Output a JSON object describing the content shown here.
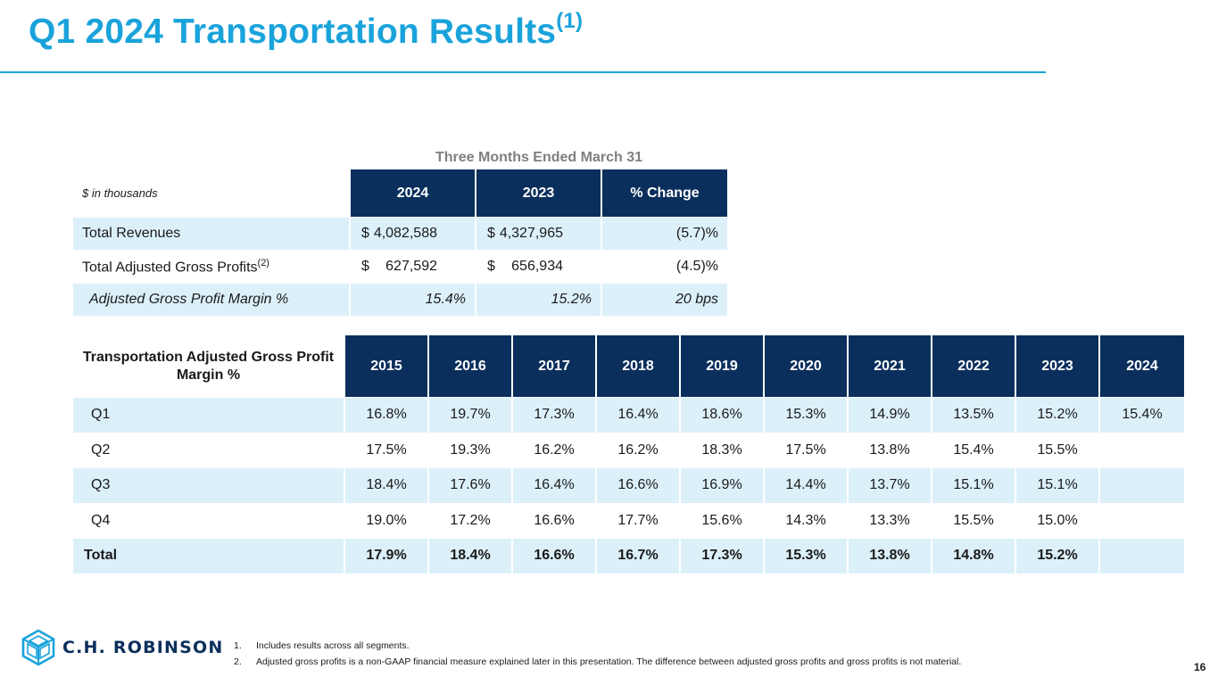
{
  "slide": {
    "title": "Q1 2024 Transportation Results",
    "title_sup": "(1)",
    "page_number": "16"
  },
  "summary_table": {
    "caption": "Three Months Ended March 31",
    "units_label": "$ in thousands",
    "columns": [
      "2024",
      "2023",
      "% Change"
    ],
    "rows": [
      {
        "label": "Total Revenues",
        "label_sup": "",
        "cur_2024": "$",
        "val_2024": "4,082,588",
        "cur_2023": "$",
        "val_2023": "4,327,965",
        "change": "(5.7)%"
      },
      {
        "label": "Total Adjusted Gross Profits",
        "label_sup": "(2)",
        "cur_2024": "$",
        "val_2024": "627,592",
        "cur_2023": "$",
        "val_2023": "656,934",
        "change": "(4.5)%"
      },
      {
        "label": "Adjusted Gross Profit Margin %",
        "label_sup": "",
        "val_2024": "15.4%",
        "val_2023": "15.2%",
        "change": "20 bps"
      }
    ]
  },
  "margin_table": {
    "header_label": "Transportation Adjusted Gross Profit Margin %",
    "years": [
      "2015",
      "2016",
      "2017",
      "2018",
      "2019",
      "2020",
      "2021",
      "2022",
      "2023",
      "2024"
    ],
    "rows": [
      {
        "label": "Q1",
        "values": [
          "16.8%",
          "19.7%",
          "17.3%",
          "16.4%",
          "18.6%",
          "15.3%",
          "14.9%",
          "13.5%",
          "15.2%",
          "15.4%"
        ]
      },
      {
        "label": "Q2",
        "values": [
          "17.5%",
          "19.3%",
          "16.2%",
          "16.2%",
          "18.3%",
          "17.5%",
          "13.8%",
          "15.4%",
          "15.5%",
          ""
        ]
      },
      {
        "label": "Q3",
        "values": [
          "18.4%",
          "17.6%",
          "16.4%",
          "16.6%",
          "16.9%",
          "14.4%",
          "13.7%",
          "15.1%",
          "15.1%",
          ""
        ]
      },
      {
        "label": "Q4",
        "values": [
          "19.0%",
          "17.2%",
          "16.6%",
          "17.7%",
          "15.6%",
          "14.3%",
          "13.3%",
          "15.5%",
          "15.0%",
          ""
        ]
      },
      {
        "label": "Total",
        "values": [
          "17.9%",
          "18.4%",
          "16.6%",
          "16.7%",
          "17.3%",
          "15.3%",
          "13.8%",
          "14.8%",
          "15.2%",
          ""
        ]
      }
    ]
  },
  "footer": {
    "logo_text": "C.H. ROBINSON",
    "logo_icon": "chr-cube-logo-icon",
    "notes": [
      {
        "num": "1.",
        "text": "Includes results across all segments."
      },
      {
        "num": "2.",
        "text": "Adjusted gross profits is a non-GAAP financial measure explained later in this presentation. The difference between adjusted gross profits and gross profits is not material."
      }
    ]
  },
  "colors": {
    "title_blue": "#1aa3db",
    "header_navy": "#0b2f5c",
    "row_shade": "#dcf0fa"
  }
}
